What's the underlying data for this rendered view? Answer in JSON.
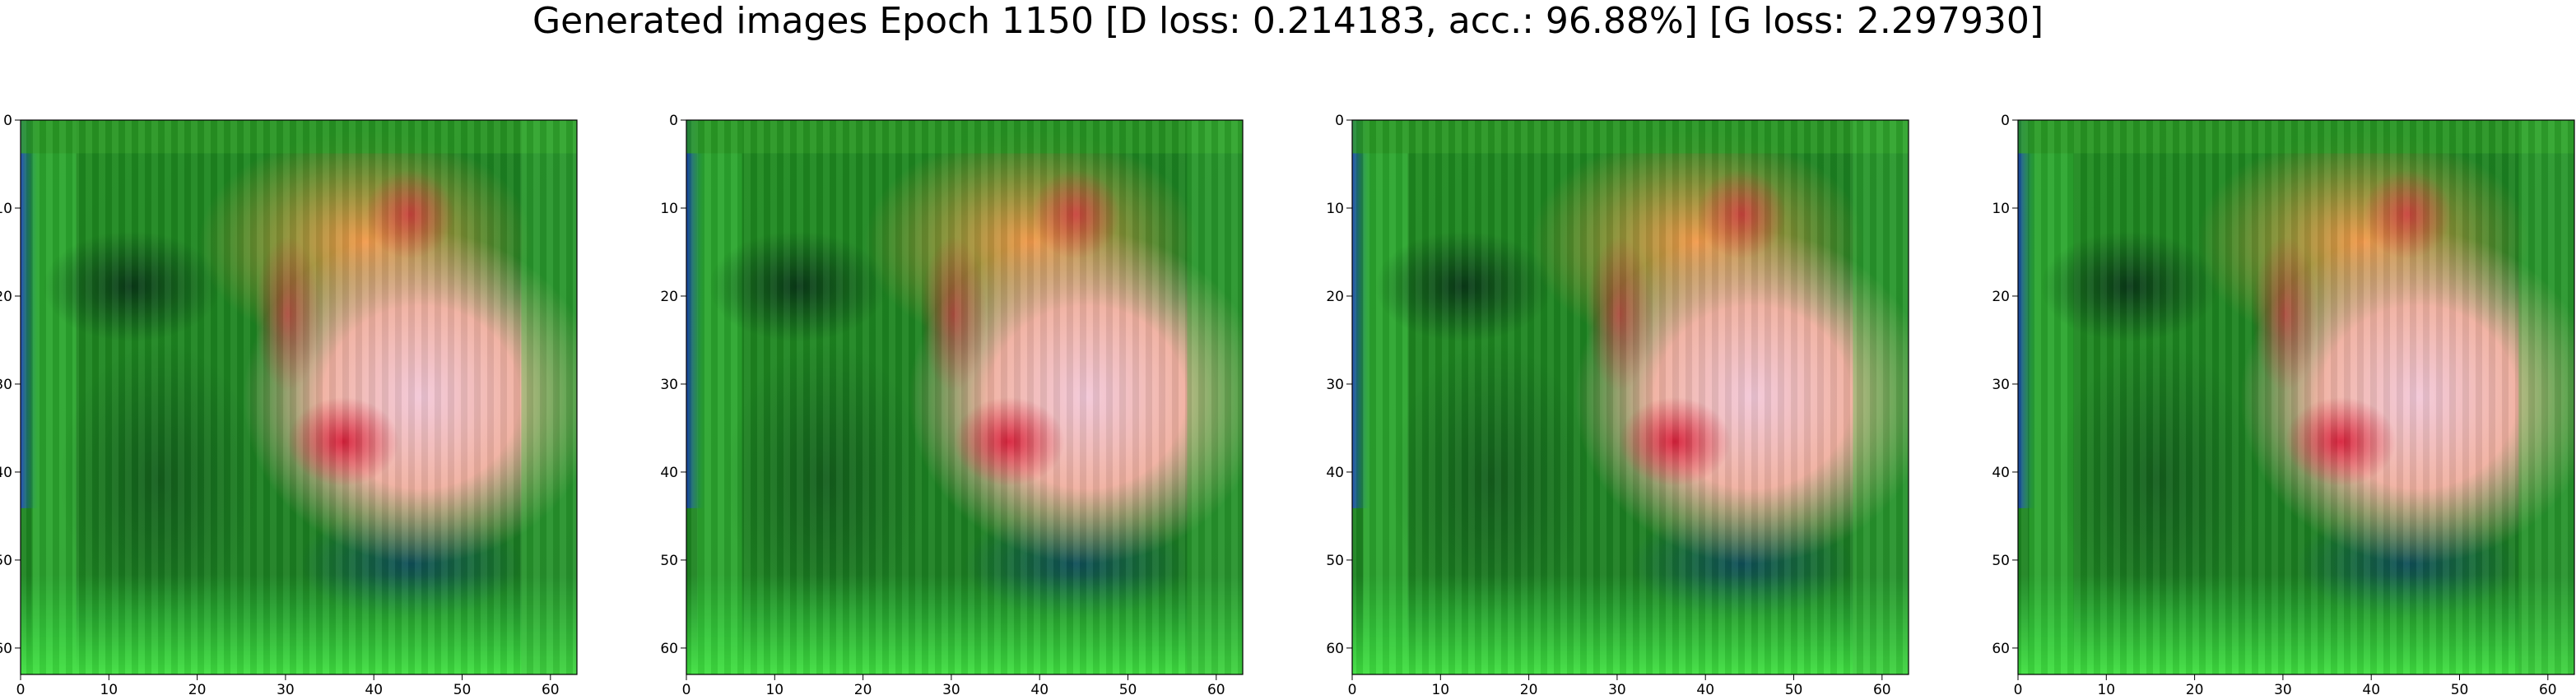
{
  "title": "Generated images Epoch 1150 [D loss: 0.214183, acc.: 96.88%] [G loss: 2.297930]",
  "chart_data": [
    {
      "type": "heatmap",
      "xlim": [
        0,
        63
      ],
      "ylim": [
        63,
        0
      ],
      "xticks": [
        0,
        10,
        20,
        30,
        40,
        50,
        60
      ],
      "yticks": [
        0,
        10,
        20,
        30,
        40,
        50,
        60
      ],
      "grid": false
    },
    {
      "type": "heatmap",
      "xlim": [
        0,
        63
      ],
      "ylim": [
        63,
        0
      ],
      "xticks": [
        0,
        10,
        20,
        30,
        40,
        50,
        60
      ],
      "yticks": [
        0,
        10,
        20,
        30,
        40,
        50,
        60
      ],
      "grid": false
    },
    {
      "type": "heatmap",
      "xlim": [
        0,
        63
      ],
      "ylim": [
        63,
        0
      ],
      "xticks": [
        0,
        10,
        20,
        30,
        40,
        50,
        60
      ],
      "yticks": [
        0,
        10,
        20,
        30,
        40,
        50,
        60
      ],
      "grid": false
    },
    {
      "type": "heatmap",
      "xlim": [
        0,
        63
      ],
      "ylim": [
        63,
        0
      ],
      "xticks": [
        0,
        10,
        20,
        30,
        40,
        50,
        60
      ],
      "yticks": [
        0,
        10,
        20,
        30,
        40,
        50,
        60
      ],
      "grid": false
    }
  ]
}
